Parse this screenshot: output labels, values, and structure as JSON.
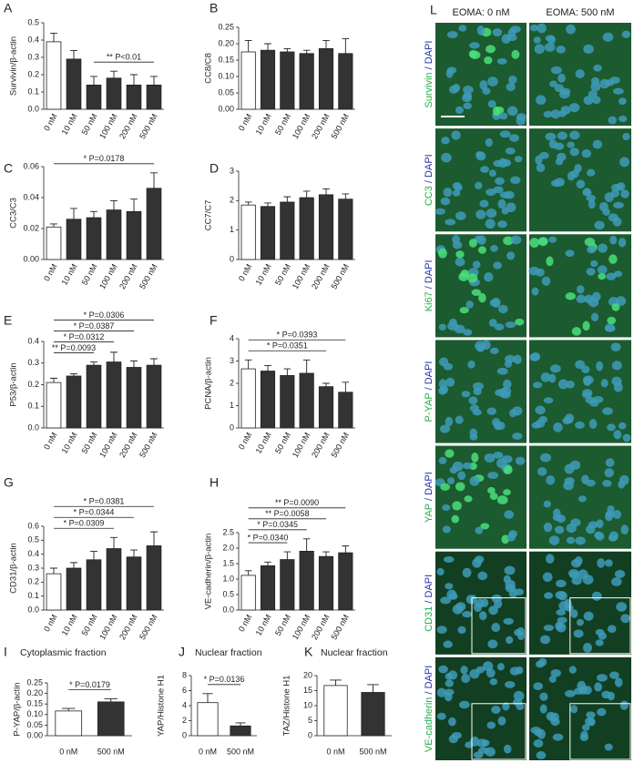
{
  "chart_data": [
    {
      "type": "bar",
      "label": "A",
      "y_label": "Survivin/β-actin",
      "categories": [
        "0 nM",
        "10 nM",
        "50 nM",
        "100 nM",
        "200 nM",
        "500 nM"
      ],
      "values": [
        0.39,
        0.29,
        0.14,
        0.18,
        0.14,
        0.14
      ],
      "errors": [
        0.05,
        0.05,
        0.05,
        0.04,
        0.06,
        0.05
      ],
      "colors": [
        "#ffffff",
        "#333333",
        "#333333",
        "#333333",
        "#333333",
        "#333333"
      ],
      "ylim": [
        0,
        0.5
      ],
      "yticks": [
        {
          "value": 0,
          "label": "0.0"
        },
        0.1,
        0.2,
        0.3,
        0.4,
        0.5
      ],
      "annotations": [
        {
          "text": "** P<0.01",
          "span": [
            "50 nM",
            "500 nM"
          ]
        }
      ]
    },
    {
      "type": "bar",
      "label": "B",
      "y_label": "CC8/C8",
      "categories": [
        "0 nM",
        "10 nM",
        "50 nM",
        "100 nM",
        "200 nM",
        "500 nM"
      ],
      "values": [
        0.175,
        0.18,
        0.175,
        0.17,
        0.185,
        0.17
      ],
      "errors": [
        0.035,
        0.02,
        0.01,
        0.01,
        0.025,
        0.045
      ],
      "colors": [
        "#ffffff",
        "#333333",
        "#333333",
        "#333333",
        "#333333",
        "#333333"
      ],
      "ylim": [
        0,
        0.25
      ],
      "yticks": [
        {
          "value": 0,
          "label": "0.00"
        },
        0.05,
        {
          "value": 0.1,
          "label": "0.10"
        },
        0.15,
        {
          "value": 0.2,
          "label": "0.20"
        },
        0.25
      ]
    },
    {
      "type": "bar",
      "label": "C",
      "y_label": "CC3/C3",
      "categories": [
        "0 nM",
        "10 nM",
        "50 nM",
        "100 nM",
        "200 nM",
        "500 nM"
      ],
      "values": [
        0.021,
        0.026,
        0.027,
        0.032,
        0.031,
        0.046
      ],
      "errors": [
        0.002,
        0.007,
        0.004,
        0.006,
        0.008,
        0.01
      ],
      "colors": [
        "#ffffff",
        "#333333",
        "#333333",
        "#333333",
        "#333333",
        "#333333"
      ],
      "ylim": [
        0,
        0.06
      ],
      "yticks": [
        {
          "value": 0,
          "label": "0.00"
        },
        0.02,
        0.04,
        0.06
      ],
      "annotations": [
        {
          "text": "* P=0.0178",
          "span": [
            "0 nM",
            "500 nM"
          ]
        }
      ]
    },
    {
      "type": "bar",
      "label": "D",
      "y_label": "CC7/C7",
      "categories": [
        "0 nM",
        "10 nM",
        "50 nM",
        "100 nM",
        "200 nM",
        "500 nM"
      ],
      "values": [
        1.85,
        1.8,
        1.95,
        2.1,
        2.2,
        2.05
      ],
      "errors": [
        0.1,
        0.12,
        0.18,
        0.22,
        0.2,
        0.18
      ],
      "colors": [
        "#ffffff",
        "#333333",
        "#333333",
        "#333333",
        "#333333",
        "#333333"
      ],
      "ylim": [
        0,
        3
      ],
      "yticks": [
        0,
        1,
        2,
        3
      ]
    },
    {
      "type": "bar",
      "label": "E",
      "y_label": "P53/β-actin",
      "categories": [
        "0 nM",
        "10 nM",
        "50 nM",
        "100 nM",
        "200 nM",
        "500 nM"
      ],
      "values": [
        0.21,
        0.24,
        0.29,
        0.305,
        0.28,
        0.29
      ],
      "errors": [
        0.02,
        0.01,
        0.015,
        0.045,
        0.03,
        0.03
      ],
      "colors": [
        "#ffffff",
        "#333333",
        "#333333",
        "#333333",
        "#333333",
        "#333333"
      ],
      "ylim": [
        0,
        0.4
      ],
      "yticks": [
        {
          "value": 0,
          "label": "0.0"
        },
        0.1,
        0.2,
        0.3,
        0.4
      ],
      "annotations": [
        {
          "text": "* P=0.0306",
          "span": [
            "0 nM",
            "500 nM"
          ]
        },
        {
          "text": "* P=0.0387",
          "span": [
            "0 nM",
            "200 nM"
          ]
        },
        {
          "text": "* P=0.0312",
          "span": [
            "0 nM",
            "100 nM"
          ]
        },
        {
          "text": "** P=0.0093",
          "span": [
            "0 nM",
            "50 nM"
          ]
        }
      ]
    },
    {
      "type": "bar",
      "label": "F",
      "y_label": "PCNA/β-actin",
      "categories": [
        "0 nM",
        "10 nM",
        "50 nM",
        "100 nM",
        "200 nM",
        "500 nM"
      ],
      "values": [
        2.65,
        2.55,
        2.35,
        2.45,
        1.85,
        1.6
      ],
      "errors": [
        0.4,
        0.25,
        0.3,
        0.6,
        0.15,
        0.45
      ],
      "colors": [
        "#ffffff",
        "#333333",
        "#333333",
        "#333333",
        "#333333",
        "#333333"
      ],
      "ylim": [
        0,
        4
      ],
      "yticks": [
        0,
        1,
        2,
        3,
        4
      ],
      "annotations": [
        {
          "text": "* P=0.0393",
          "span": [
            "0 nM",
            "500 nM"
          ]
        },
        {
          "text": "* P=0.0351",
          "span": [
            "0 nM",
            "200 nM"
          ]
        }
      ]
    },
    {
      "type": "bar",
      "label": "G",
      "y_label": "CD31/β-actin",
      "categories": [
        "0 nM",
        "10 nM",
        "50 nM",
        "100 nM",
        "200 nM",
        "500 nM"
      ],
      "values": [
        0.26,
        0.3,
        0.36,
        0.44,
        0.38,
        0.46
      ],
      "errors": [
        0.04,
        0.04,
        0.06,
        0.08,
        0.05,
        0.1
      ],
      "colors": [
        "#ffffff",
        "#333333",
        "#333333",
        "#333333",
        "#333333",
        "#333333"
      ],
      "ylim": [
        0,
        0.6
      ],
      "yticks": [
        {
          "value": 0,
          "label": "0.0"
        },
        0.1,
        0.2,
        0.3,
        0.4,
        0.5,
        0.6
      ],
      "annotations": [
        {
          "text": "* P=0.0381",
          "span": [
            "0 nM",
            "500 nM"
          ]
        },
        {
          "text": "* P=0.0344",
          "span": [
            "0 nM",
            "200 nM"
          ]
        },
        {
          "text": "* P=0.0309",
          "span": [
            "0 nM",
            "100 nM"
          ]
        }
      ]
    },
    {
      "type": "bar",
      "label": "H",
      "y_label": "VE-cadherin/β-actin",
      "categories": [
        "0 nM",
        "10 nM",
        "50 nM",
        "100 nM",
        "200 nM",
        "500 nM"
      ],
      "values": [
        1.12,
        1.43,
        1.63,
        1.9,
        1.73,
        1.85
      ],
      "errors": [
        0.15,
        0.12,
        0.25,
        0.4,
        0.15,
        0.22
      ],
      "colors": [
        "#ffffff",
        "#333333",
        "#333333",
        "#333333",
        "#333333",
        "#333333"
      ],
      "ylim": [
        0,
        2.5
      ],
      "yticks": [
        {
          "value": 0,
          "label": "0.0"
        },
        0.5,
        {
          "value": 1,
          "label": "1.0"
        },
        1.5,
        {
          "value": 2,
          "label": "2.0"
        },
        2.5
      ],
      "annotations": [
        {
          "text": "** P=0.0090",
          "span": [
            "0 nM",
            "500 nM"
          ]
        },
        {
          "text": "** P=0.0058",
          "span": [
            "0 nM",
            "200 nM"
          ]
        },
        {
          "text": "* P=0.0345",
          "span": [
            "0 nM",
            "100 nM"
          ]
        },
        {
          "text": "* P=0.0340",
          "span": [
            "0 nM",
            "50 nM"
          ]
        }
      ]
    },
    {
      "type": "bar",
      "label": "I",
      "title": "Cytoplasmic fraction",
      "y_label": "P-YAP/β-actin",
      "categories": [
        "0 nM",
        "500 nM"
      ],
      "values": [
        0.117,
        0.16
      ],
      "errors": [
        0.012,
        0.015
      ],
      "colors": [
        "#ffffff",
        "#333333"
      ],
      "ylim": [
        0,
        0.25
      ],
      "yticks": [
        {
          "value": 0,
          "label": "0.00"
        },
        0.05,
        {
          "value": 0.1,
          "label": "0.10"
        },
        0.15,
        {
          "value": 0.2,
          "label": "0.20"
        },
        0.25
      ],
      "annotations": [
        {
          "text": "* P=0.0179",
          "span": [
            "0 nM",
            "500 nM"
          ]
        }
      ]
    },
    {
      "type": "bar",
      "label": "J",
      "title": "Nuclear fraction",
      "y_label": "YAP/Histone H1",
      "categories": [
        "0 nM",
        "500 nM"
      ],
      "values": [
        4.4,
        1.3
      ],
      "errors": [
        1.2,
        0.4
      ],
      "colors": [
        "#ffffff",
        "#333333"
      ],
      "ylim": [
        0,
        8
      ],
      "yticks": [
        0,
        2,
        4,
        6,
        8
      ],
      "annotations": [
        {
          "text": "* P=0.0136",
          "span": [
            "0 nM",
            "500 nM"
          ]
        }
      ]
    },
    {
      "type": "bar",
      "label": "K",
      "title": "Nuclear fraction",
      "y_label": "TAZ/Histone H1",
      "categories": [
        "0 nM",
        "500 nM"
      ],
      "values": [
        16.7,
        14.4
      ],
      "errors": [
        1.8,
        2.6
      ],
      "colors": [
        "#ffffff",
        "#333333"
      ],
      "ylim": [
        0,
        20
      ],
      "yticks": [
        0,
        5,
        10,
        15,
        20
      ]
    }
  ],
  "microscopy": {
    "label": "L",
    "columns": [
      "EOMA: 0 nM",
      "EOMA: 500 nM"
    ],
    "rows": [
      {
        "stain": "Survivin",
        "counterstain": "/ DAPI"
      },
      {
        "stain": "CC3",
        "counterstain": "/ DAPI"
      },
      {
        "stain": "Ki67",
        "counterstain": "/ DAPI"
      },
      {
        "stain": "P-YAP",
        "counterstain": "/ DAPI"
      },
      {
        "stain": "YAP",
        "counterstain": "/ DAPI"
      },
      {
        "stain": "CD31",
        "counterstain": "/ DAPI"
      },
      {
        "stain": "VE-cadherin",
        "counterstain": "/ DAPI"
      }
    ]
  }
}
